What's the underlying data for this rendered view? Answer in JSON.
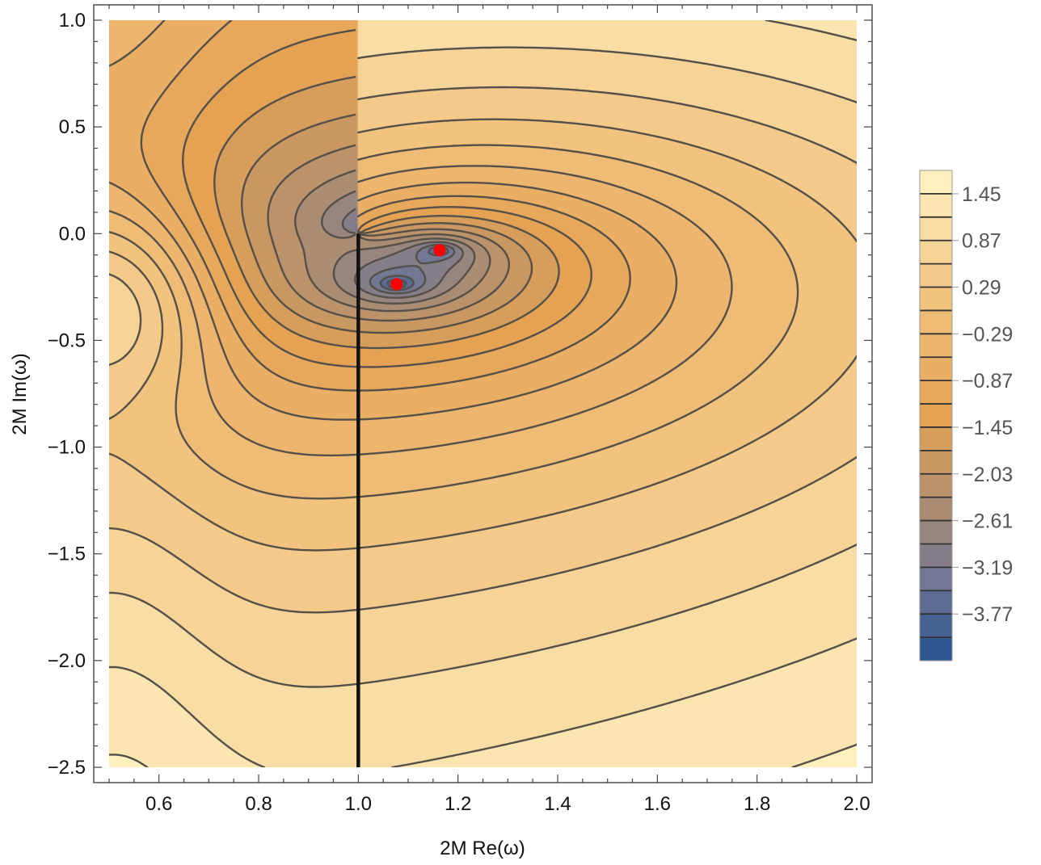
{
  "chart_data": {
    "type": "heatmap",
    "subtype": "contour",
    "title": "",
    "xlabel": "2M Re(ω)",
    "ylabel": "2M Im(ω)",
    "xlim": [
      0.5,
      2.0
    ],
    "ylim": [
      -2.5,
      1.0
    ],
    "x_ticks": [
      0.6,
      0.8,
      1.0,
      1.2,
      1.4,
      1.6,
      1.8,
      2.0
    ],
    "x_tick_labels": [
      "0.6",
      "0.8",
      "1.0",
      "1.2",
      "1.4",
      "1.6",
      "1.8",
      "2.0"
    ],
    "y_ticks": [
      1.0,
      0.5,
      0.0,
      -0.5,
      -1.0,
      -1.5,
      -2.0,
      -2.5
    ],
    "y_tick_labels": [
      "1.0",
      "0.5",
      "0.0",
      "−0.5",
      "−1.0",
      "−1.5",
      "−2.0",
      "−2.5"
    ],
    "branch_cut": {
      "x": 1.0,
      "y_from": 0.0,
      "y_to": -2.5
    },
    "marked_points": [
      {
        "name": "zero-1",
        "x": 1.163,
        "y": -0.078
      },
      {
        "name": "zero-2",
        "x": 1.077,
        "y": -0.237
      }
    ],
    "colorbar": {
      "min": -4.35,
      "max": 1.74,
      "step": 0.29,
      "labels": [
        "1.45",
        "0.87",
        "0.29",
        "−0.29",
        "−0.87",
        "−1.45",
        "−2.03",
        "−2.61",
        "−3.19",
        "−3.77"
      ],
      "label_values": [
        1.45,
        0.87,
        0.29,
        -0.29,
        -0.87,
        -1.45,
        -2.03,
        -2.61,
        -3.19,
        -3.77
      ]
    },
    "colors": {
      "high": "#FEF4C4",
      "mid_high": "#F3C684",
      "mid": "#E5A253",
      "mid_low": "#B5906D",
      "low": "#757893",
      "lowest": "#245294",
      "contour": "#55504a",
      "marker": "#ff0000"
    }
  }
}
